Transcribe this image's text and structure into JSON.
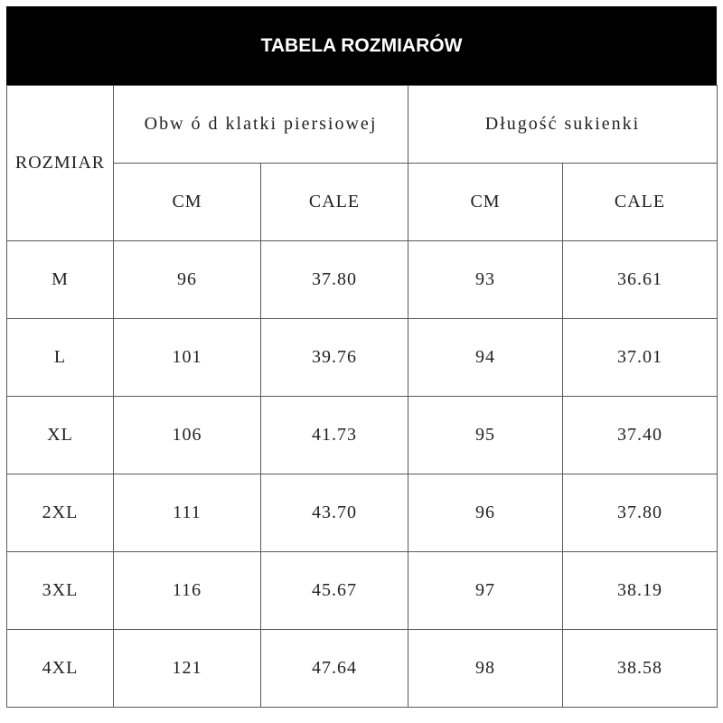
{
  "title": "TABELA ROZMIARÓW",
  "headers": {
    "size": "ROZMIAR",
    "chest": "Obw ó d klatki piersiowej",
    "length": "Długość sukienki",
    "chest_cm": "CM",
    "chest_in": "CALE",
    "length_cm": "CM",
    "length_in": "CALE"
  },
  "rows": [
    {
      "size": "M",
      "chest_cm": "96",
      "chest_in": "37.80",
      "length_cm": "93",
      "length_in": "36.61"
    },
    {
      "size": "L",
      "chest_cm": "101",
      "chest_in": "39.76",
      "length_cm": "94",
      "length_in": "37.01"
    },
    {
      "size": "XL",
      "chest_cm": "106",
      "chest_in": "41.73",
      "length_cm": "95",
      "length_in": "37.40"
    },
    {
      "size": "2XL",
      "chest_cm": "111",
      "chest_in": "43.70",
      "length_cm": "96",
      "length_in": "37.80"
    },
    {
      "size": "3XL",
      "chest_cm": "116",
      "chest_in": "45.67",
      "length_cm": "97",
      "length_in": "38.19"
    },
    {
      "size": "4XL",
      "chest_cm": "121",
      "chest_in": "47.64",
      "length_cm": "98",
      "length_in": "38.58"
    }
  ]
}
